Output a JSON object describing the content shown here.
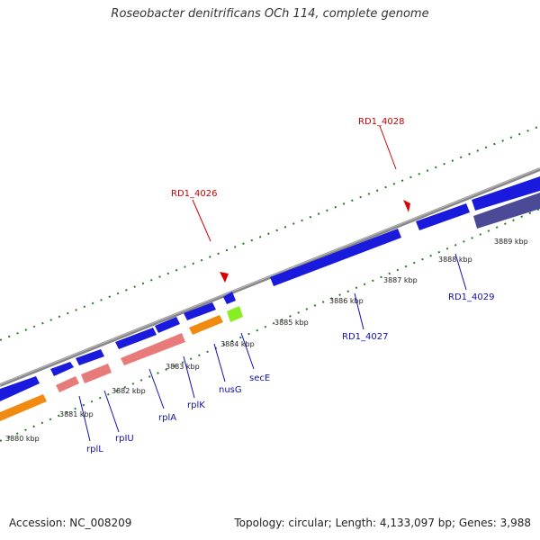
{
  "title": "Roseobacter denitrificans OCh 114, complete genome",
  "accession": "Accession: NC_008209",
  "summary": "Topology: circular; Length: 4,133,097 bp; Genes: 3,988",
  "kbp_ticks": [
    "3880 kbp",
    "3881 kbp",
    "3882 kbp",
    "3883 kbp",
    "3884 kbp",
    "3885 kbp",
    "3886 kbp",
    "3887 kbp",
    "3888 kbp",
    "3889 kbp"
  ],
  "gene_labels": [
    "rplL",
    "rpIU",
    "rplA",
    "rplK",
    "nusG",
    "secE",
    "RD1_4027",
    "RD1_4029"
  ],
  "red_labels": [
    "RD1_4026",
    "RD1_4028"
  ],
  "colors": {
    "cds": "#1a1adc",
    "rrna": "#e87a7a",
    "orange": "#f08a10",
    "green": "#88ee22",
    "purple": "#4a4a96",
    "ticks": "#2a7a2a",
    "backbone": "#888888"
  }
}
